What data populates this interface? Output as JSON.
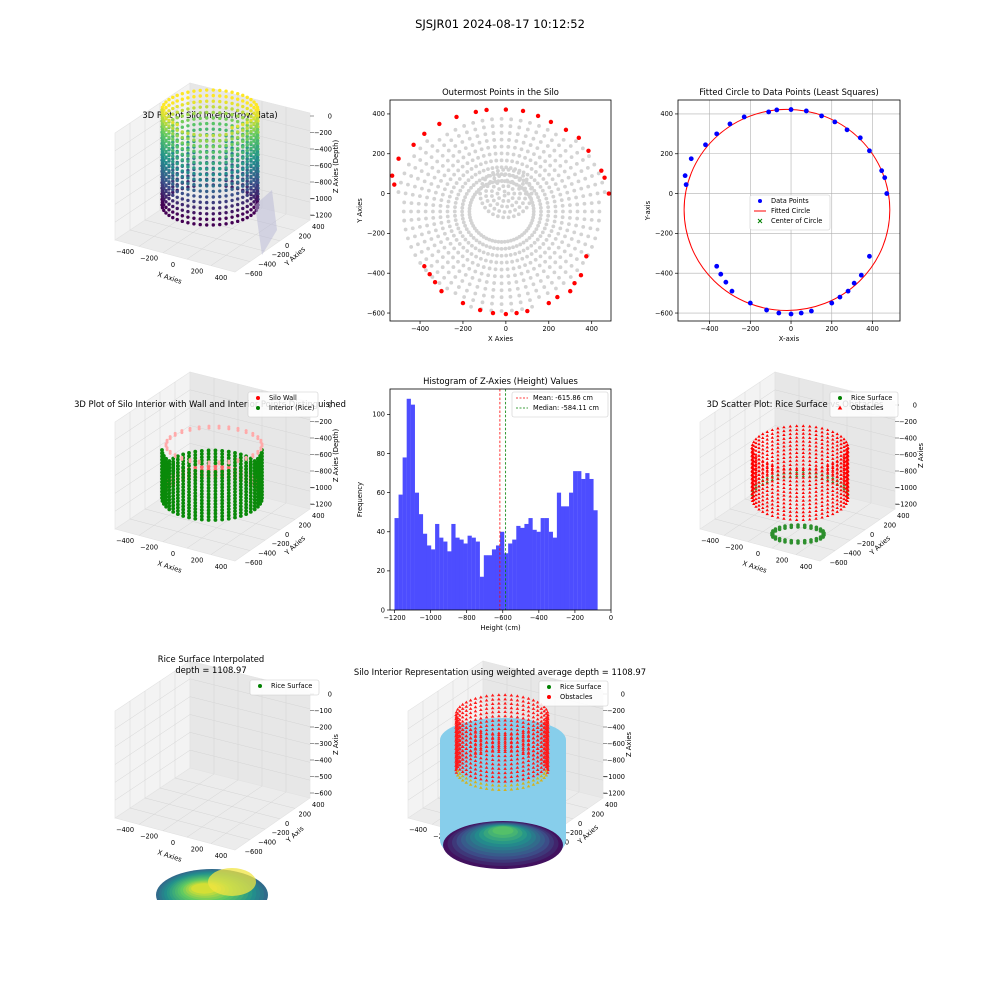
{
  "suptitle": "SJSJR01 2024-08-17 10:12:52",
  "chart_data": [
    {
      "id": "p1",
      "type": "scatter3d",
      "title": "3D Plot of Silo Interior(row data)",
      "xlabel": "X Axies",
      "ylabel": "Y Axies",
      "zlabel": "Z Axies (Depth)",
      "xticks": [
        -400,
        -200,
        0,
        200,
        400
      ],
      "yticks": [
        400,
        200,
        0,
        -200,
        -400,
        -600
      ],
      "zticks": [
        0,
        -200,
        -400,
        -600,
        -800,
        -1000,
        -1200
      ],
      "xlim": [
        -550,
        480
      ],
      "ylim": [
        -620,
        440
      ],
      "zlim": [
        -1300,
        0
      ],
      "colormap": "viridis"
    },
    {
      "id": "p2",
      "type": "scatter",
      "title": "Outermost Points in the Silo",
      "xlabel": "X Axies",
      "ylabel": "Y Axies",
      "xticks": [
        -400,
        -200,
        0,
        200,
        400
      ],
      "yticks": [
        400,
        200,
        0,
        -200,
        -400,
        -600
      ],
      "xlim": [
        -540,
        490
      ],
      "ylim": [
        -640,
        470
      ],
      "grid": false,
      "interior_color": "#d3d3d3",
      "outer_color": "#ff0000",
      "outer_points": [
        [
          -530,
          90
        ],
        [
          -520,
          45
        ],
        [
          -500,
          175
        ],
        [
          -430,
          245
        ],
        [
          -380,
          300
        ],
        [
          -310,
          350
        ],
        [
          -230,
          385
        ],
        [
          -140,
          410
        ],
        [
          -90,
          420
        ],
        [
          0,
          422
        ],
        [
          80,
          415
        ],
        [
          150,
          390
        ],
        [
          210,
          360
        ],
        [
          280,
          320
        ],
        [
          340,
          280
        ],
        [
          385,
          215
        ],
        [
          445,
          115
        ],
        [
          460,
          80
        ],
        [
          480,
          0
        ],
        [
          375,
          -315
        ],
        [
          350,
          -410
        ],
        [
          320,
          -450
        ],
        [
          300,
          -490
        ],
        [
          240,
          -520
        ],
        [
          200,
          -550
        ],
        [
          100,
          -590
        ],
        [
          50,
          -600
        ],
        [
          0,
          -605
        ],
        [
          -60,
          -600
        ],
        [
          -120,
          -585
        ],
        [
          -200,
          -550
        ],
        [
          -300,
          -490
        ],
        [
          -330,
          -445
        ],
        [
          -355,
          -405
        ],
        [
          -380,
          -365
        ]
      ]
    },
    {
      "id": "p3",
      "type": "scatter",
      "title": "Fitted Circle to Data Points (Least Squares)",
      "xlabel": "X-axis",
      "ylabel": "Y-axis",
      "xticks": [
        -400,
        -200,
        0,
        200,
        400
      ],
      "yticks": [
        400,
        200,
        0,
        -200,
        -400,
        -600
      ],
      "xlim": [
        -555,
        535
      ],
      "ylim": [
        -640,
        470
      ],
      "grid": true,
      "legend_position": "center",
      "legend": [
        "Data Points",
        "Fitted Circle",
        "Center of Circle"
      ],
      "circle": {
        "cx": -20,
        "cy": -82,
        "r": 505
      },
      "points": [
        [
          -520,
          90
        ],
        [
          -515,
          45
        ],
        [
          -490,
          175
        ],
        [
          -420,
          245
        ],
        [
          -365,
          300
        ],
        [
          -300,
          350
        ],
        [
          -230,
          385
        ],
        [
          -110,
          410
        ],
        [
          -70,
          420
        ],
        [
          0,
          422
        ],
        [
          75,
          415
        ],
        [
          150,
          390
        ],
        [
          215,
          360
        ],
        [
          275,
          320
        ],
        [
          340,
          280
        ],
        [
          385,
          215
        ],
        [
          445,
          115
        ],
        [
          460,
          80
        ],
        [
          470,
          0
        ],
        [
          385,
          -315
        ],
        [
          345,
          -410
        ],
        [
          310,
          -450
        ],
        [
          280,
          -490
        ],
        [
          240,
          -520
        ],
        [
          200,
          -550
        ],
        [
          100,
          -590
        ],
        [
          50,
          -600
        ],
        [
          0,
          -605
        ],
        [
          -60,
          -600
        ],
        [
          -120,
          -585
        ],
        [
          -200,
          -550
        ],
        [
          -290,
          -490
        ],
        [
          -320,
          -445
        ],
        [
          -345,
          -405
        ],
        [
          -365,
          -365
        ]
      ]
    },
    {
      "id": "p4",
      "type": "scatter3d",
      "title": "3D Plot of Silo Interior with Wall and Interior Points Distinguished",
      "xlabel": "X Axies",
      "ylabel": "Y Axies",
      "zlabel": "Z Axies (Depth)",
      "xticks": [
        -400,
        -200,
        0,
        200,
        400
      ],
      "yticks": [
        400,
        200,
        0,
        -200,
        -400,
        -600
      ],
      "zticks": [
        0,
        -200,
        -400,
        -600,
        -800,
        -1000,
        -1200
      ],
      "legend_position": "upper right",
      "legend": [
        "Silo Wall",
        "Interior (Rice)"
      ]
    },
    {
      "id": "p5",
      "type": "bar",
      "title": "Histogram of Z-Axies (Height) Values",
      "xlabel": "Height (cm)",
      "ylabel": "Frequency",
      "xticks": [
        -1200,
        -1000,
        -800,
        -600,
        -400,
        -200,
        0
      ],
      "yticks": [
        0,
        20,
        40,
        60,
        80,
        100
      ],
      "xlim": [
        -1225,
        0
      ],
      "ylim": [
        0,
        113
      ],
      "bin_start": -1200,
      "bin_width": 22.5,
      "values": [
        47,
        59,
        78,
        108,
        105,
        60,
        49,
        39,
        33,
        31,
        44,
        37,
        35,
        30,
        44,
        37,
        36,
        34,
        38,
        37,
        35,
        17,
        28,
        28,
        31,
        33,
        40,
        29,
        34,
        36,
        43,
        42,
        44,
        47,
        41,
        40,
        47,
        47,
        40,
        37,
        60,
        53,
        53,
        60,
        71,
        71,
        67,
        70,
        67,
        51
      ],
      "bar_color": "#4d4dff",
      "mean": -615.86,
      "median": -584.11,
      "legend": [
        "Mean: -615.86 cm",
        "Median: -584.11 cm"
      ],
      "legend_position": "upper right"
    },
    {
      "id": "p6",
      "type": "scatter3d",
      "title": "3D Scatter Plot: Rice Surface vs Obstacles",
      "xlabel": "X Axies",
      "ylabel": "Y Axies",
      "zlabel": "Z Axies",
      "xticks": [
        -400,
        -200,
        0,
        200,
        400
      ],
      "yticks": [
        400,
        200,
        0,
        -200,
        -400,
        -600
      ],
      "zticks": [
        0,
        -200,
        -400,
        -600,
        -800,
        -1000,
        -1200
      ],
      "legend_position": "upper right",
      "legend": [
        "Rice Surface",
        "Obstacles"
      ]
    },
    {
      "id": "p7",
      "type": "surface3d",
      "title": "Rice Surface Interpolated",
      "subtitle": "depth = 1108.97",
      "xlabel": "X Axies",
      "ylabel": "Y Axis",
      "zlabel": "Z Axis",
      "xticks": [
        -400,
        -200,
        0,
        200,
        400
      ],
      "yticks": [
        400,
        200,
        0,
        -200,
        -400,
        -600
      ],
      "zticks": [
        0,
        -100,
        -200,
        -300,
        -400,
        -500,
        -600
      ],
      "legend_position": "upper right",
      "legend": [
        "Rice Surface"
      ]
    },
    {
      "id": "p8",
      "type": "scatter3d",
      "title": "Silo Interior Representation using weighted average depth = 1108.97",
      "xlabel": "X Axies",
      "ylabel": "Y Axies",
      "zlabel": "Z Axies",
      "xticks": [
        -400,
        -200,
        0,
        200,
        400
      ],
      "yticks": [
        400,
        200,
        0,
        -200,
        -400,
        -600
      ],
      "zticks": [
        0,
        -200,
        -400,
        -600,
        -800,
        -1000,
        -1200
      ],
      "legend_position": "upper center",
      "legend": [
        "Rice Surface",
        "Obstacles"
      ]
    }
  ]
}
